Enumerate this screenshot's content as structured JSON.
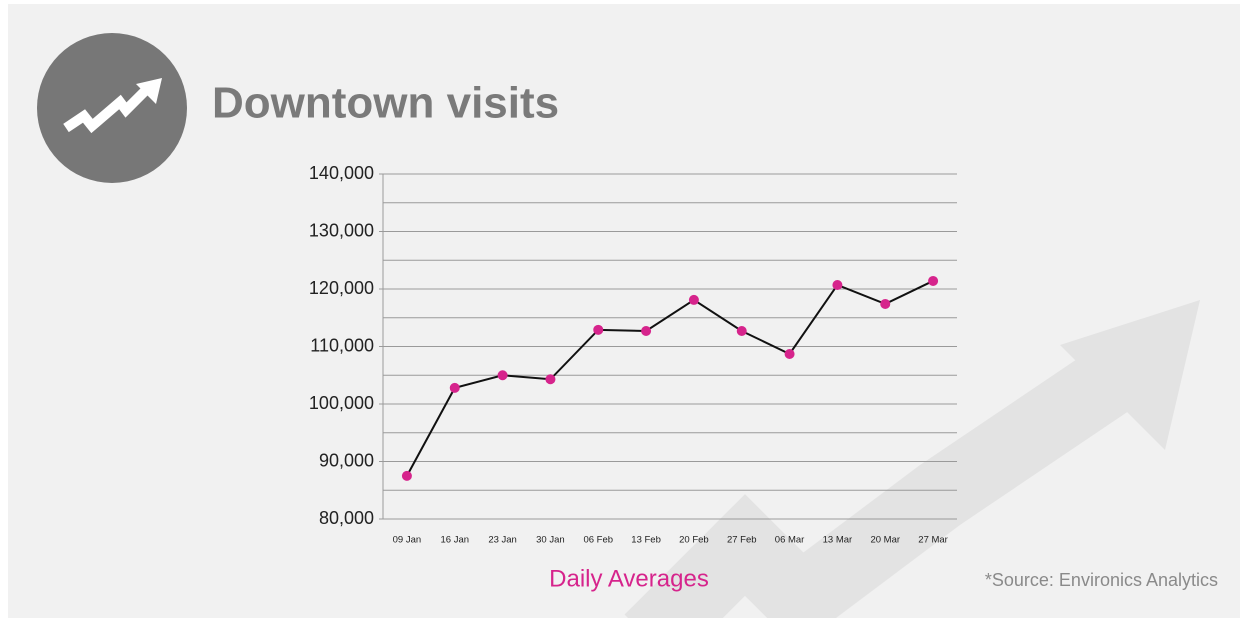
{
  "chart_data": {
    "type": "line",
    "title": "Downtown visits",
    "xlabel": "Daily Averages",
    "source": "*Source: Environics Analytics",
    "categories": [
      "09 Jan",
      "16 Jan",
      "23 Jan",
      "30 Jan",
      "06 Feb",
      "13 Feb",
      "20 Feb",
      "27 Feb",
      "06 Mar",
      "13 Mar",
      "20 Mar",
      "27 Mar"
    ],
    "series": [
      {
        "color": "#111111",
        "marker_color": "#d6248c",
        "values": [
          87500,
          102800,
          105000,
          104300,
          112900,
          112700,
          118100,
          112700,
          108700,
          120700,
          117400,
          121400
        ]
      }
    ],
    "ylim": [
      80000,
      140000
    ],
    "yticks": [
      {
        "value": 80000,
        "label": "80,000"
      },
      {
        "value": 90000,
        "label": "90,000"
      },
      {
        "value": 100000,
        "label": "100,000"
      },
      {
        "value": 110000,
        "label": "110,000"
      },
      {
        "value": 120000,
        "label": "120,000"
      },
      {
        "value": 130000,
        "label": "130,000"
      },
      {
        "value": 140000,
        "label": "140,000"
      }
    ],
    "ygrid": [
      80000,
      85000,
      90000,
      95000,
      100000,
      105000,
      110000,
      115000,
      120000,
      125000,
      130000,
      135000,
      140000
    ],
    "grid": true
  }
}
